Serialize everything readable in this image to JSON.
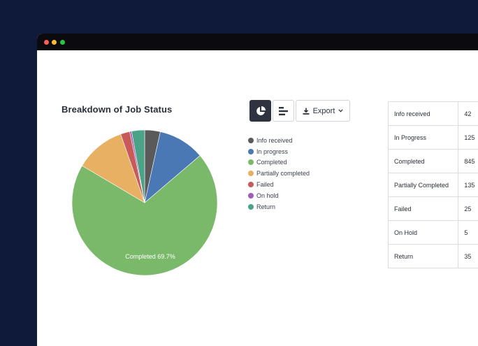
{
  "window": {
    "controls": [
      "close",
      "minimize",
      "maximize"
    ]
  },
  "chart_title": "Breakdown of Job Status",
  "toolbar": {
    "pie_icon": "pie-chart-icon",
    "bar_icon": "bar-chart-icon",
    "export_label": "Export"
  },
  "chart_data": {
    "type": "pie",
    "title": "Breakdown of Job Status",
    "slice_label": "Completed 69.7%",
    "slices": [
      {
        "label": "Info received",
        "value": 42,
        "color": "#5a5a5a"
      },
      {
        "label": "In progress",
        "value": 125,
        "color": "#4a78b5"
      },
      {
        "label": "Completed",
        "value": 845,
        "color": "#7ab96a"
      },
      {
        "label": "Partially completed",
        "value": 135,
        "color": "#e8b063"
      },
      {
        "label": "Failed",
        "value": 25,
        "color": "#c85a5a"
      },
      {
        "label": "On hold",
        "value": 5,
        "color": "#9c5fb5"
      },
      {
        "label": "Return",
        "value": 35,
        "color": "#4aa386"
      }
    ]
  },
  "table": {
    "rows": [
      {
        "name": "Info received",
        "value": "42"
      },
      {
        "name": "In Progress",
        "value": "125"
      },
      {
        "name": "Completed",
        "value": "845"
      },
      {
        "name": "Partially Completed",
        "value": "135"
      },
      {
        "name": "Failed",
        "value": "25"
      },
      {
        "name": "On Hold",
        "value": "5"
      },
      {
        "name": "Return",
        "value": "35"
      }
    ]
  }
}
